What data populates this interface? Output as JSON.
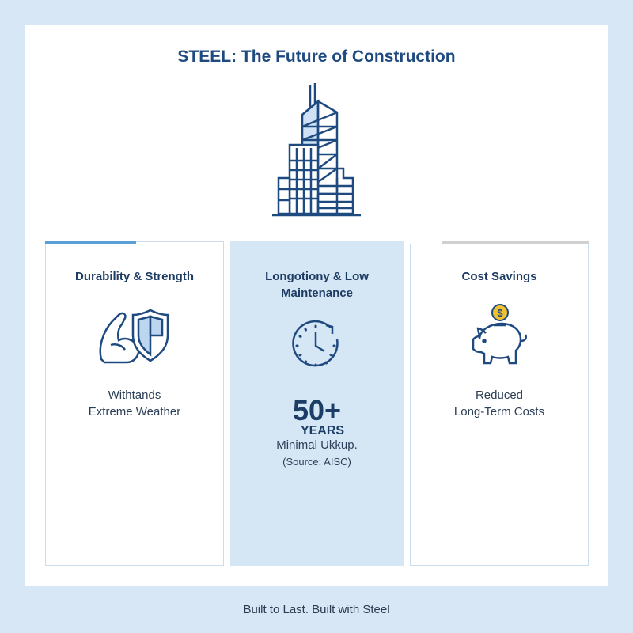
{
  "title": "STEEL: The Future of Construction",
  "colors": {
    "navy": "#1f4a80",
    "accent_blue": "#5aa0d8",
    "mid_card": "#d5e6f5",
    "coin": "#f2c12e"
  },
  "cards": [
    {
      "title": "Durability & Strength",
      "icon": "flexed-arm-shield-icon",
      "text_line1": "Withtands",
      "text_line2": "Extreme Weather"
    },
    {
      "title_line1": "Longotiony & Low",
      "title_line2": "Maintenance",
      "icon": "clock-refresh-icon",
      "stat": "50+",
      "stat_unit": "YEARS",
      "text_line1": "Minimal Ukkup.",
      "source": "(Source: AISC)"
    },
    {
      "title": "Cost Savings",
      "icon": "piggy-bank-coin-icon",
      "text_line1": "Reduced",
      "text_line2": "Long-Term Costs"
    }
  ],
  "footer": "Built to Last. Built with Steel"
}
